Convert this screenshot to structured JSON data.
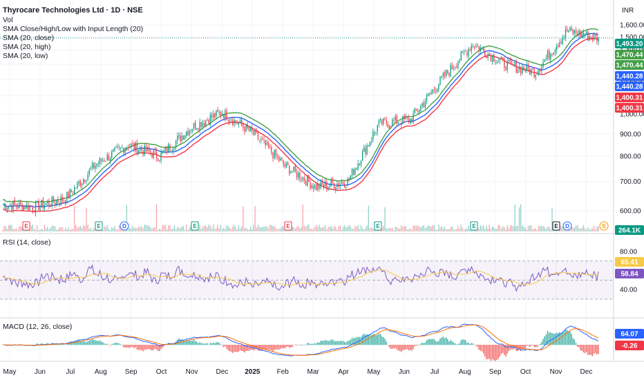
{
  "header": {
    "title": "Thyrocare Technologies Ltd · 1D · NSE",
    "currency": "INR",
    "indicators": [
      "Vol",
      "SMA Close/High/Low with Input Length (20)",
      "SMA (20, close)",
      "SMA (20, high)",
      "SMA (20, low)"
    ]
  },
  "price_tags": [
    {
      "value": "1,493.20",
      "color": "#089981"
    },
    {
      "value": "1,470.44",
      "color": "#43a047"
    },
    {
      "value": "1,470.44",
      "color": "#43a047"
    },
    {
      "value": "1,440.28",
      "color": "#2962ff"
    },
    {
      "value": "1,440.28",
      "color": "#2962ff"
    },
    {
      "value": "1,400.31",
      "color": "#f23645"
    },
    {
      "value": "1,400.31",
      "color": "#f23645"
    }
  ],
  "volume_tag": {
    "value": "264.1K",
    "color": "#089981"
  },
  "rsi": {
    "title": "RSI (14, close)",
    "tags": [
      {
        "value": "65.41",
        "color": "#f7c948",
        "text": "#131722"
      },
      {
        "value": "58.84",
        "color": "#7e57c2",
        "text": "#ffffff"
      }
    ],
    "ticks": [
      "80.00",
      "40.00"
    ]
  },
  "macd": {
    "title": "MACD (12, 26, close)",
    "tags": [
      {
        "value": "64.07",
        "color": "#2962ff",
        "text": "#ffffff"
      },
      {
        "value": "-0.26",
        "color": "#f23645",
        "text": "#ffffff"
      }
    ]
  },
  "events": [
    "E",
    "E",
    "D",
    "E",
    "E",
    "E",
    "E",
    "E",
    "D",
    "S"
  ],
  "chart_data": {
    "type": "candlestick",
    "price_axis_ticks": [
      "1,600.00",
      "1,500.00",
      "1,400.00",
      "1,300.00",
      "1,200.00",
      "1,100.00",
      "1,000.00",
      "900.00",
      "800.00",
      "700.00",
      "600.00"
    ],
    "x_ticks": [
      "May",
      "Jun",
      "Jul",
      "Aug",
      "Sep",
      "Oct",
      "Nov",
      "Dec",
      "2025",
      "Feb",
      "Mar",
      "Apr",
      "May",
      "Jun",
      "Jul",
      "Aug",
      "Sep",
      "Oct",
      "Nov",
      "Dec"
    ],
    "price_scale": "log",
    "monthly_close_anchors": [
      {
        "x": "May",
        "y": 620
      },
      {
        "x": "Jun",
        "y": 612
      },
      {
        "x": "Jul",
        "y": 640
      },
      {
        "x": "Aug",
        "y": 770
      },
      {
        "x": "Sep",
        "y": 850
      },
      {
        "x": "Oct",
        "y": 800
      },
      {
        "x": "Nov",
        "y": 930
      },
      {
        "x": "Dec",
        "y": 1010
      },
      {
        "x": "2025",
        "y": 900
      },
      {
        "x": "Feb",
        "y": 760
      },
      {
        "x": "Mar",
        "y": 680
      },
      {
        "x": "Apr",
        "y": 700
      },
      {
        "x": "May",
        "y": 950
      },
      {
        "x": "Jun",
        "y": 970
      },
      {
        "x": "Jul",
        "y": 1200
      },
      {
        "x": "Aug",
        "y": 1450
      },
      {
        "x": "Sep",
        "y": 1300
      },
      {
        "x": "Oct",
        "y": 1250
      },
      {
        "x": "Nov",
        "y": 1550
      },
      {
        "x": "Dec",
        "y": 1493.2
      }
    ],
    "last_close": 1493.2,
    "sma20_high": 1470.44,
    "sma20_close": 1440.28,
    "sma20_low": 1400.31,
    "rsi_last": 58.84,
    "rsi_ma_last": 65.41,
    "macd_last": 64.07,
    "macd_hist_last": -0.26
  }
}
